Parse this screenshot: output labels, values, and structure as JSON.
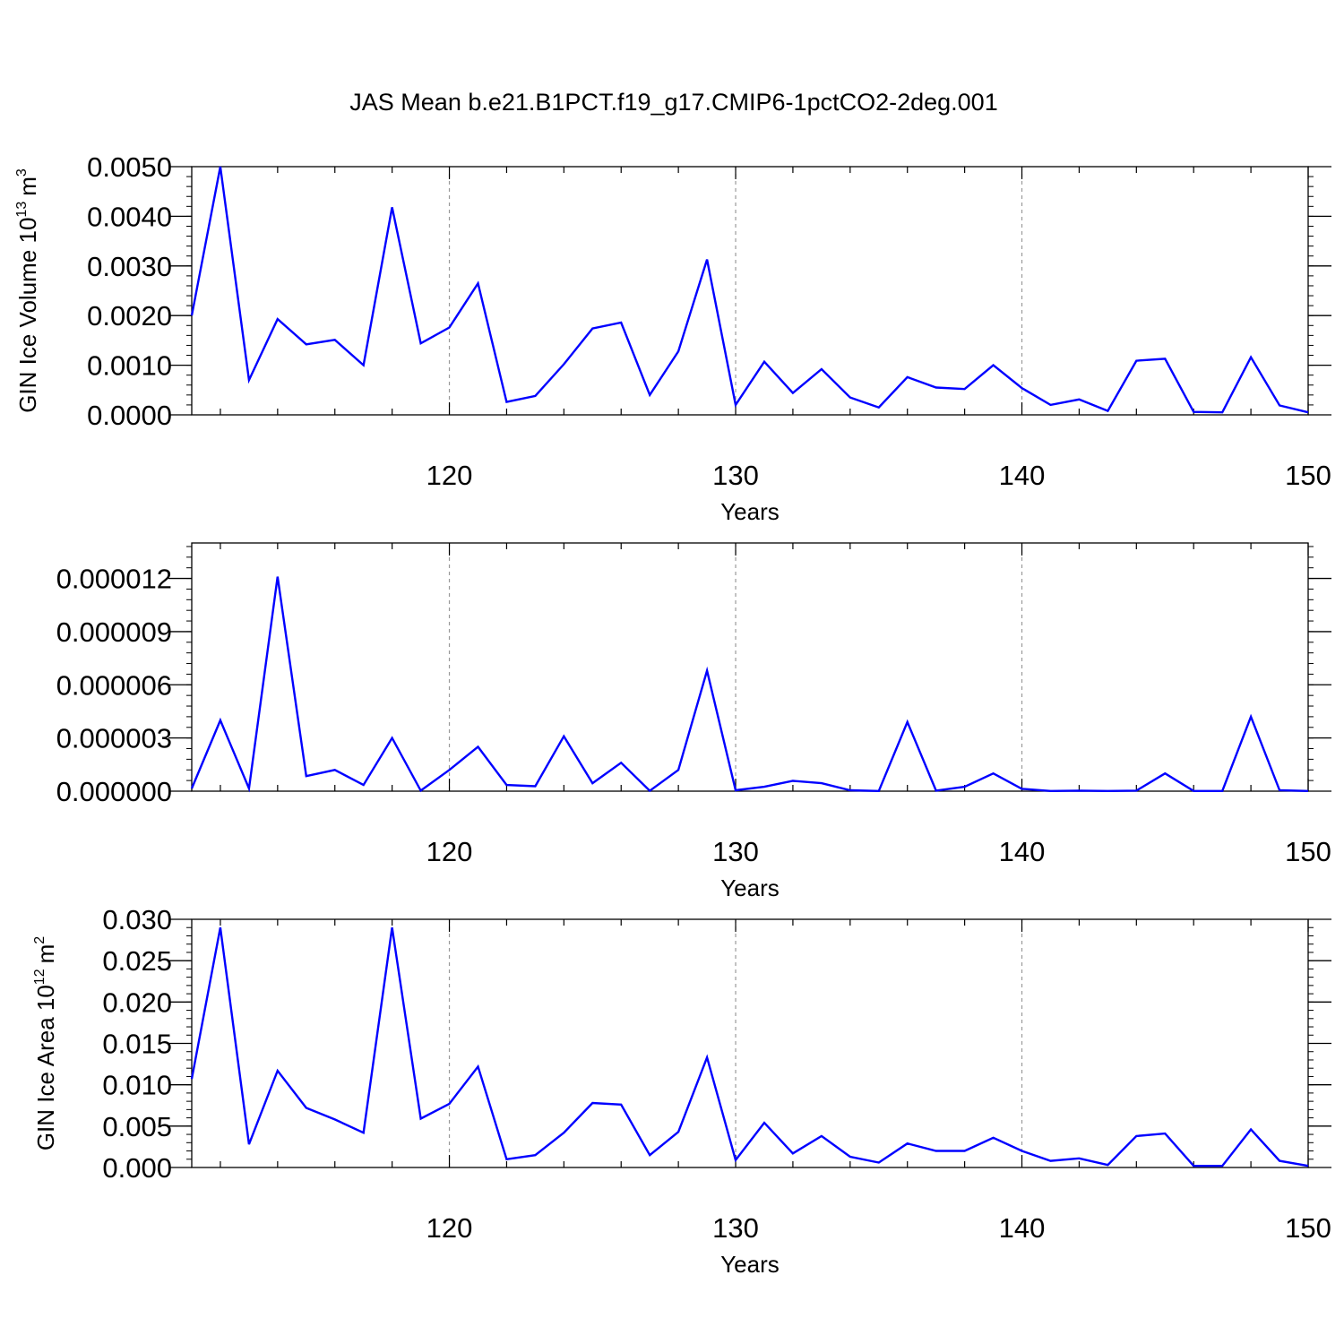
{
  "title": "JAS Mean b.e21.B1PCT.f19_g17.CMIP6-1pctCO2-2deg.001",
  "chart_data": [
    {
      "type": "line",
      "xlabel": "Years",
      "ylabel_text": "GIN Ice Volume 10",
      "ylabel_exp": "13",
      "ylabel_unit": "m",
      "ylabel_unit_exp": "3",
      "xlim": [
        111,
        150
      ],
      "ylim": [
        0,
        0.005
      ],
      "yticks": [
        0,
        0.001,
        0.002,
        0.003,
        0.004,
        0.005
      ],
      "ytick_labels": [
        "0.0000",
        "0.0010",
        "0.0020",
        "0.0030",
        "0.0040",
        "0.0050"
      ],
      "xticks": [
        120,
        130,
        140,
        150
      ],
      "xtick_labels": [
        "120",
        "130",
        "140",
        "150"
      ],
      "grid": "dashed vertical at major x ticks",
      "color": "#0000ff",
      "x": [
        111,
        112,
        113,
        114,
        115,
        116,
        117,
        118,
        119,
        120,
        121,
        122,
        123,
        124,
        125,
        126,
        127,
        128,
        129,
        130,
        131,
        132,
        133,
        134,
        135,
        136,
        137,
        138,
        139,
        140,
        141,
        142,
        143,
        144,
        145,
        146,
        147,
        148,
        149,
        150
      ],
      "values": [
        0.002,
        0.005,
        0.0007,
        0.00193,
        0.00142,
        0.00151,
        0.001,
        0.00418,
        0.00144,
        0.00176,
        0.00265,
        0.00026,
        0.00038,
        0.00102,
        0.00174,
        0.00186,
        0.0004,
        0.00128,
        0.00313,
        0.0002,
        0.00107,
        0.00044,
        0.00092,
        0.00035,
        0.00015,
        0.00076,
        0.00055,
        0.00052,
        0.001,
        0.00054,
        0.0002,
        0.00031,
        8e-05,
        0.00109,
        0.00113,
        6e-05,
        5e-05,
        0.00116,
        0.00019,
        5e-05
      ]
    },
    {
      "type": "line",
      "xlabel": "Years",
      "ylabel_text": "",
      "ylabel_exp": "",
      "ylabel_unit": "",
      "ylabel_unit_exp": "",
      "xlim": [
        111,
        150
      ],
      "ylim": [
        0,
        1.4e-05
      ],
      "yticks": [
        0,
        3e-06,
        6e-06,
        9e-06,
        1.2e-05
      ],
      "ytick_labels": [
        "0.000000",
        "0.000003",
        "0.000006",
        "0.000009",
        "0.000012"
      ],
      "xticks": [
        120,
        130,
        140,
        150
      ],
      "xtick_labels": [
        "120",
        "130",
        "140",
        "150"
      ],
      "grid": "dashed vertical at major x ticks",
      "color": "#0000ff",
      "x": [
        111,
        112,
        113,
        114,
        115,
        116,
        117,
        118,
        119,
        120,
        121,
        122,
        123,
        124,
        125,
        126,
        127,
        128,
        129,
        130,
        131,
        132,
        133,
        134,
        135,
        136,
        137,
        138,
        139,
        140,
        141,
        142,
        143,
        144,
        145,
        146,
        147,
        148,
        149,
        150
      ],
      "values": [
        1.5e-07,
        4e-06,
        1.5e-07,
        1.21e-05,
        8.5e-07,
        1.2e-06,
        3.5e-07,
        3e-06,
        3e-08,
        1.2e-06,
        2.5e-06,
        3.5e-07,
        2.8e-07,
        3.1e-06,
        4.5e-07,
        1.6e-06,
        2e-08,
        1.2e-06,
        6.8e-06,
        5e-08,
        2.5e-07,
        5.8e-07,
        4.5e-07,
        5e-08,
        1e-08,
        3.9e-06,
        3e-08,
        2.5e-07,
        1e-06,
        1.3e-07,
        1e-08,
        3e-08,
        1e-08,
        3e-08,
        1e-06,
        1e-08,
        1e-08,
        4.2e-06,
        5e-08,
        1e-08
      ]
    },
    {
      "type": "line",
      "xlabel": "Years",
      "ylabel_text": "GIN Ice Area 10",
      "ylabel_exp": "12",
      "ylabel_unit": "m",
      "ylabel_unit_exp": "2",
      "xlim": [
        111,
        150
      ],
      "ylim": [
        0,
        0.03
      ],
      "yticks": [
        0,
        0.005,
        0.01,
        0.015,
        0.02,
        0.025,
        0.03
      ],
      "ytick_labels": [
        "0.000",
        "0.005",
        "0.010",
        "0.015",
        "0.020",
        "0.025",
        "0.030"
      ],
      "xticks": [
        120,
        130,
        140,
        150
      ],
      "xtick_labels": [
        "120",
        "130",
        "140",
        "150"
      ],
      "grid": "dashed vertical at major x ticks",
      "color": "#0000ff",
      "x": [
        111,
        112,
        113,
        114,
        115,
        116,
        117,
        118,
        119,
        120,
        121,
        122,
        123,
        124,
        125,
        126,
        127,
        128,
        129,
        130,
        131,
        132,
        133,
        134,
        135,
        136,
        137,
        138,
        139,
        140,
        141,
        142,
        143,
        144,
        145,
        146,
        147,
        148,
        149,
        150
      ],
      "values": [
        0.0107,
        0.029,
        0.0028,
        0.0117,
        0.0072,
        0.0058,
        0.0042,
        0.029,
        0.0059,
        0.0077,
        0.0122,
        0.001,
        0.0015,
        0.0042,
        0.0078,
        0.0076,
        0.0015,
        0.0043,
        0.0133,
        0.0009,
        0.0054,
        0.0017,
        0.0038,
        0.0013,
        0.0006,
        0.0029,
        0.002,
        0.002,
        0.0036,
        0.002,
        0.0008,
        0.0011,
        0.0003,
        0.0038,
        0.0041,
        0.0002,
        0.0002,
        0.0046,
        0.0008,
        0.0002
      ]
    }
  ]
}
